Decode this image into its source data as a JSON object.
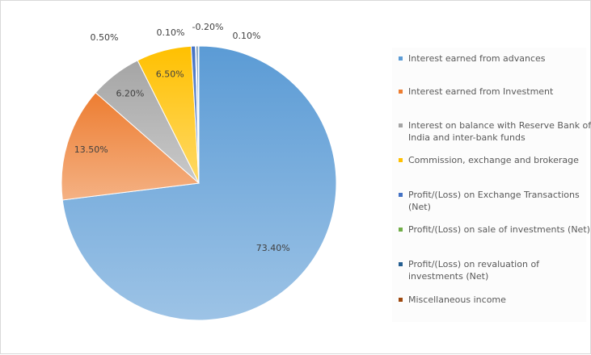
{
  "chart_data": {
    "type": "pie",
    "categories": [
      "Interest earned from advances",
      "Interest earned from Investment",
      "Interest on balance with Reserve Bank of India and inter-bank funds",
      "Commission, exchange and brokerage",
      "Profit/(Loss) on Exchange Transactions (Net)",
      "Profit/(Loss) on sale of investments (Net)",
      "Profit/(Loss) on revaluation of investments (Net)",
      "Miscellaneous income"
    ],
    "values": [
      73.4,
      13.5,
      6.2,
      6.5,
      0.5,
      0.1,
      -0.2,
      0.1
    ],
    "value_labels": [
      "73.40%",
      "13.50%",
      "6.20%",
      "6.50%",
      "0.50%",
      "0.10%",
      "-0.20%",
      "0.10%"
    ],
    "colors": [
      "#5b9bd5",
      "#ed7d31",
      "#a5a5a5",
      "#ffc000",
      "#4472c4",
      "#70ad47",
      "#255e91",
      "#9e480e"
    ],
    "legend": "right"
  }
}
